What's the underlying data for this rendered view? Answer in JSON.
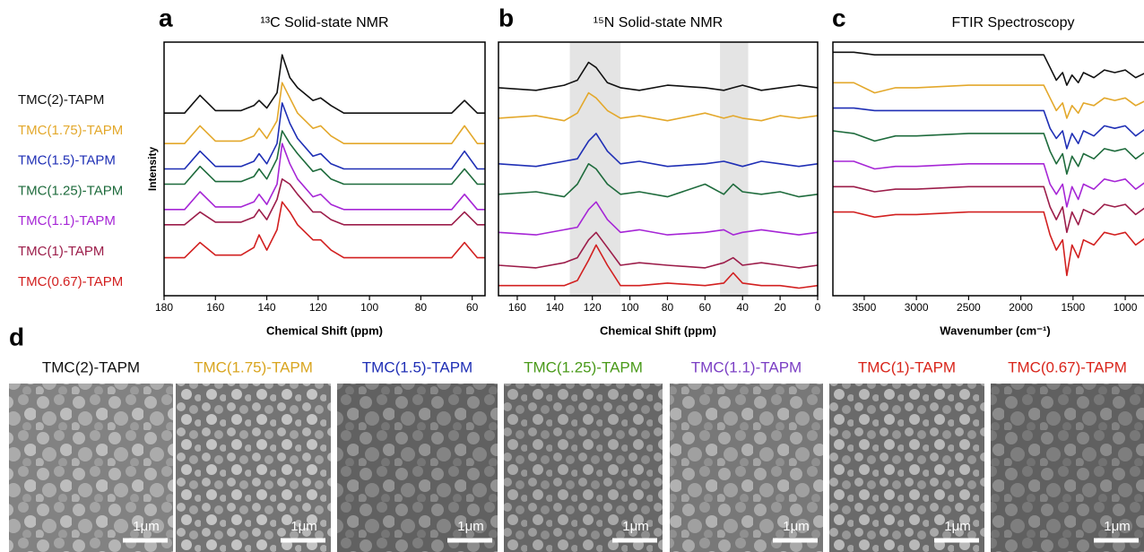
{
  "panel_labels": [
    "a",
    "b",
    "c",
    "d"
  ],
  "chart_data": [
    {
      "type": "line",
      "title": "¹³C Solid-state NMR",
      "x_label": "Chemical Shift (ppm)",
      "y_label": "Intensity",
      "xlim": [
        180,
        55
      ],
      "xticks": [
        180,
        160,
        140,
        120,
        100,
        80,
        60
      ],
      "ylim": [
        0,
        100
      ],
      "legend": "left-outside",
      "grid": false,
      "x": [
        180,
        172,
        166,
        160,
        150,
        145,
        143,
        140,
        136,
        134,
        131,
        128,
        122,
        119,
        115,
        110,
        100,
        80,
        68,
        63,
        58,
        55
      ],
      "series": [
        {
          "name": "TMC(2)-TAPM",
          "color": "#111111",
          "values": [
            72,
            72,
            79,
            73,
            73,
            75,
            77,
            74,
            80,
            95,
            86,
            82,
            77,
            78,
            75,
            72,
            72,
            72,
            72,
            77,
            72,
            72
          ]
        },
        {
          "name": "TMC(1.75)-TAPM",
          "color": "#e3a82b",
          "values": [
            60,
            60,
            67,
            61,
            61,
            63,
            66,
            62,
            69,
            84,
            78,
            72,
            66,
            67,
            63,
            60,
            60,
            60,
            60,
            67,
            60,
            60
          ]
        },
        {
          "name": "TMC(1.5)-TAPM",
          "color": "#1f2fb5",
          "values": [
            50,
            50,
            57,
            51,
            51,
            53,
            56,
            52,
            60,
            76,
            68,
            62,
            55,
            56,
            52,
            50,
            50,
            50,
            50,
            57,
            50,
            50
          ]
        },
        {
          "name": "TMC(1.25)-TAPM",
          "color": "#1e6b3c",
          "values": [
            44,
            44,
            51,
            45,
            45,
            47,
            50,
            46,
            54,
            65,
            60,
            56,
            49,
            50,
            46,
            44,
            44,
            44,
            44,
            50,
            44,
            44
          ]
        },
        {
          "name": "TMC(1.1)-TAPM",
          "color": "#a626d6",
          "values": [
            34,
            34,
            41,
            35,
            35,
            37,
            40,
            36,
            44,
            60,
            52,
            46,
            39,
            40,
            36,
            34,
            34,
            34,
            34,
            40,
            34,
            34
          ]
        },
        {
          "name": "TMC(1)-TAPM",
          "color": "#9c1d4a",
          "values": [
            28,
            28,
            33,
            29,
            29,
            31,
            34,
            30,
            38,
            46,
            44,
            40,
            33,
            33,
            30,
            28,
            28,
            28,
            28,
            33,
            28,
            28
          ]
        },
        {
          "name": "TMC(0.67)-TAPM",
          "color": "#d22020",
          "values": [
            15,
            15,
            21,
            16,
            16,
            19,
            24,
            18,
            26,
            37,
            33,
            28,
            22,
            22,
            18,
            15,
            15,
            15,
            15,
            21,
            15,
            15
          ]
        }
      ]
    },
    {
      "type": "line",
      "title": "¹⁵N Solid-state NMR",
      "x_label": "Chemical Shift (ppm)",
      "xlim": [
        170,
        0
      ],
      "xticks": [
        160,
        140,
        120,
        100,
        80,
        60,
        40,
        20,
        0
      ],
      "ylim": [
        0,
        100
      ],
      "grid": false,
      "highlight_ranges": [
        [
          132,
          105
        ],
        [
          52,
          37
        ]
      ],
      "x": [
        170,
        150,
        135,
        128,
        122,
        118,
        112,
        105,
        95,
        80,
        60,
        50,
        45,
        40,
        30,
        20,
        10,
        0
      ],
      "series": [
        {
          "color": "#111111",
          "values": [
            82,
            81,
            83,
            85,
            92,
            90,
            84,
            82,
            81,
            83,
            82,
            81,
            82,
            83,
            81,
            82,
            83,
            82
          ]
        },
        {
          "color": "#e3a82b",
          "values": [
            70,
            71,
            69,
            72,
            80,
            78,
            73,
            70,
            71,
            69,
            72,
            70,
            71,
            70,
            69,
            71,
            70,
            71
          ]
        },
        {
          "color": "#1f2fb5",
          "values": [
            52,
            51,
            53,
            54,
            61,
            64,
            57,
            52,
            53,
            51,
            52,
            53,
            52,
            51,
            53,
            52,
            51,
            52
          ]
        },
        {
          "color": "#1e6b3c",
          "values": [
            40,
            41,
            39,
            44,
            52,
            50,
            44,
            40,
            41,
            39,
            44,
            40,
            44,
            41,
            40,
            41,
            39,
            40
          ]
        },
        {
          "color": "#a626d6",
          "values": [
            25,
            24,
            26,
            27,
            34,
            37,
            30,
            25,
            26,
            24,
            25,
            26,
            24,
            25,
            26,
            25,
            24,
            25
          ]
        },
        {
          "color": "#9c1d4a",
          "values": [
            12,
            11,
            13,
            15,
            22,
            25,
            19,
            12,
            13,
            12,
            11,
            13,
            15,
            12,
            13,
            12,
            11,
            12
          ]
        },
        {
          "color": "#d22020",
          "values": [
            4,
            4,
            4,
            6,
            14,
            20,
            12,
            4,
            4,
            5,
            4,
            5,
            9,
            5,
            4,
            4,
            3,
            4
          ]
        }
      ]
    },
    {
      "type": "line",
      "title": "FTIR Spectroscopy",
      "x_label": "Wavenumber (cm⁻¹)",
      "xlim": [
        3800,
        700
      ],
      "xticks": [
        3500,
        3000,
        2500,
        2000,
        1500,
        1000
      ],
      "ylim": [
        0,
        100
      ],
      "grid": false,
      "x": [
        3800,
        3600,
        3400,
        3200,
        3000,
        2500,
        2000,
        1780,
        1720,
        1660,
        1600,
        1560,
        1510,
        1450,
        1400,
        1300,
        1200,
        1100,
        1000,
        900,
        800,
        700
      ],
      "series": [
        {
          "color": "#111111",
          "values": [
            96,
            96,
            95,
            95,
            95,
            95,
            95,
            95,
            90,
            85,
            88,
            83,
            87,
            84,
            88,
            86,
            89,
            88,
            89,
            86,
            88,
            86
          ]
        },
        {
          "color": "#e3a82b",
          "values": [
            84,
            84,
            80,
            82,
            82,
            83,
            83,
            83,
            78,
            73,
            76,
            70,
            75,
            72,
            76,
            75,
            78,
            77,
            78,
            75,
            77,
            74
          ]
        },
        {
          "color": "#1f2fb5",
          "values": [
            74,
            74,
            73,
            73,
            73,
            73,
            73,
            73,
            66,
            62,
            65,
            58,
            64,
            60,
            65,
            63,
            67,
            66,
            67,
            63,
            66,
            62
          ]
        },
        {
          "color": "#1e6b3c",
          "values": [
            65,
            64,
            61,
            63,
            63,
            64,
            64,
            64,
            57,
            52,
            56,
            48,
            55,
            51,
            56,
            54,
            58,
            57,
            58,
            54,
            57,
            53
          ]
        },
        {
          "color": "#a626d6",
          "values": [
            53,
            53,
            50,
            51,
            51,
            52,
            52,
            52,
            44,
            40,
            44,
            35,
            43,
            38,
            44,
            42,
            46,
            45,
            46,
            42,
            45,
            41
          ]
        },
        {
          "color": "#9c1d4a",
          "values": [
            43,
            43,
            41,
            42,
            42,
            43,
            43,
            43,
            35,
            30,
            35,
            25,
            33,
            28,
            34,
            32,
            36,
            35,
            36,
            32,
            35,
            31
          ]
        },
        {
          "color": "#d22020",
          "values": [
            33,
            33,
            31,
            32,
            32,
            33,
            33,
            33,
            24,
            18,
            22,
            8,
            20,
            15,
            22,
            20,
            25,
            24,
            25,
            20,
            23,
            19
          ]
        }
      ]
    }
  ],
  "sem": {
    "images": [
      {
        "label": "TMC(2)-TAPM",
        "color": "#111111",
        "scale_bar": "1μm"
      },
      {
        "label": "TMC(1.75)-TAPM",
        "color": "#d9a520",
        "scale_bar": "1μm"
      },
      {
        "label": "TMC(1.5)-TAPM",
        "color": "#1f2fb5",
        "scale_bar": "1μm"
      },
      {
        "label": "TMC(1.25)-TAPM",
        "color": "#4a9a1a",
        "scale_bar": "1μm"
      },
      {
        "label": "TMC(1.1)-TAPM",
        "color": "#7b3fc4",
        "scale_bar": "1μm"
      },
      {
        "label": "TMC(1)-TAPM",
        "color": "#d9261c",
        "scale_bar": "1μm"
      },
      {
        "label": "TMC(0.67)-TAPM",
        "color": "#d9261c",
        "scale_bar": "1μm"
      }
    ]
  }
}
